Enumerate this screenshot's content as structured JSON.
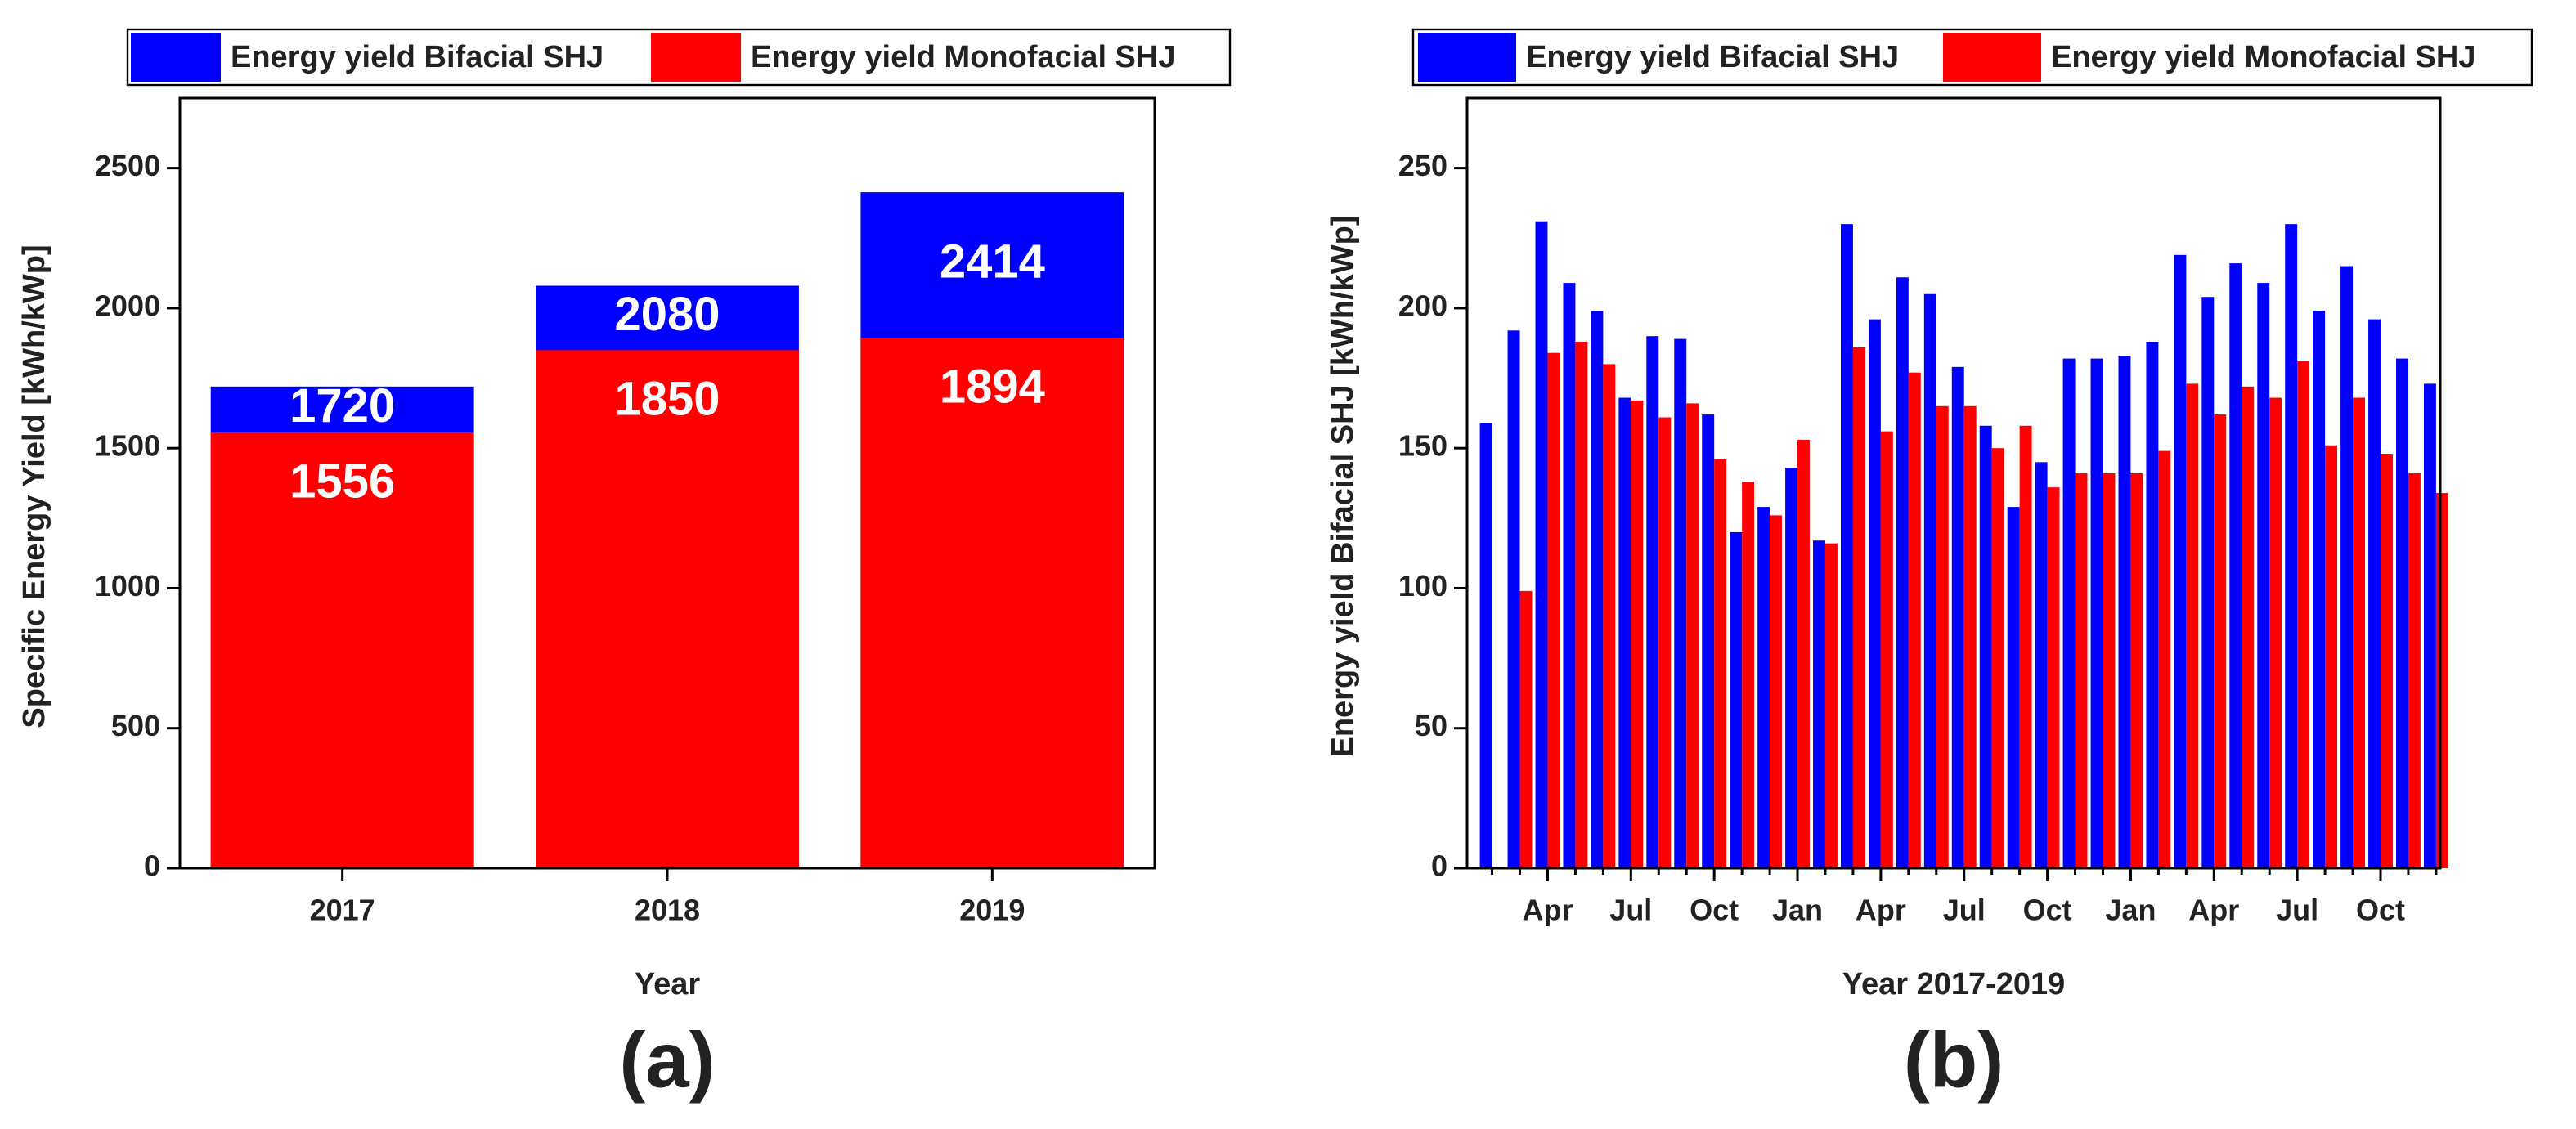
{
  "chart_data": [
    {
      "type": "bar",
      "bar_mode": "overlay",
      "show_values": true,
      "legend": "top",
      "panel_label": "(a)",
      "x_label": "Year",
      "y_label": "Specific Energy Yield [kWh/kWp]",
      "categories": [
        "2017",
        "2018",
        "2019"
      ],
      "series": [
        {
          "name": "Energy yield Bifacial SHJ",
          "color": "#0000ff",
          "values": [
            1720,
            2080,
            2414
          ]
        },
        {
          "name": "Energy yield Monofacial SHJ",
          "color": "#ff0000",
          "values": [
            1556,
            1850,
            1894
          ]
        }
      ],
      "ylim": [
        0,
        2750
      ],
      "yticks": [
        0,
        500,
        1000,
        1500,
        2000,
        2500
      ]
    },
    {
      "type": "bar",
      "bar_mode": "group",
      "show_values": false,
      "legend": "top",
      "panel_label": "(b)",
      "x_label": "Year 2017-2019",
      "y_label": "Energy yield Bifacial SHJ [kWh/kWp]",
      "categories": [
        null,
        null,
        "Apr",
        null,
        null,
        "Jul",
        null,
        null,
        "Oct",
        null,
        null,
        "Jan",
        null,
        null,
        "Apr",
        null,
        null,
        "Jul",
        null,
        null,
        "Oct",
        null,
        null,
        "Jan",
        null,
        null,
        "Apr",
        null,
        null,
        "Jul",
        null,
        null,
        "Oct",
        null,
        null
      ],
      "series": [
        {
          "name": "Energy yield Bifacial SHJ",
          "color": "#0000ff",
          "values": [
            159,
            192,
            231,
            209,
            199,
            168,
            190,
            189,
            162,
            120,
            129,
            143,
            117,
            230,
            196,
            211,
            205,
            179,
            158,
            129,
            145,
            182,
            182,
            183,
            188,
            219,
            204,
            216,
            209,
            230,
            199,
            215,
            196,
            182,
            173
          ]
        },
        {
          "name": "Energy yield Monofacial SHJ",
          "color": "#ff0000",
          "values": [
            null,
            99,
            184,
            188,
            180,
            167,
            161,
            166,
            146,
            138,
            126,
            153,
            116,
            186,
            156,
            177,
            165,
            165,
            150,
            158,
            136,
            141,
            141,
            141,
            149,
            173,
            162,
            172,
            168,
            181,
            151,
            168,
            148,
            141,
            134
          ]
        }
      ],
      "ylim": [
        0,
        275
      ],
      "yticks": [
        0,
        50,
        100,
        150,
        200,
        250
      ]
    }
  ]
}
